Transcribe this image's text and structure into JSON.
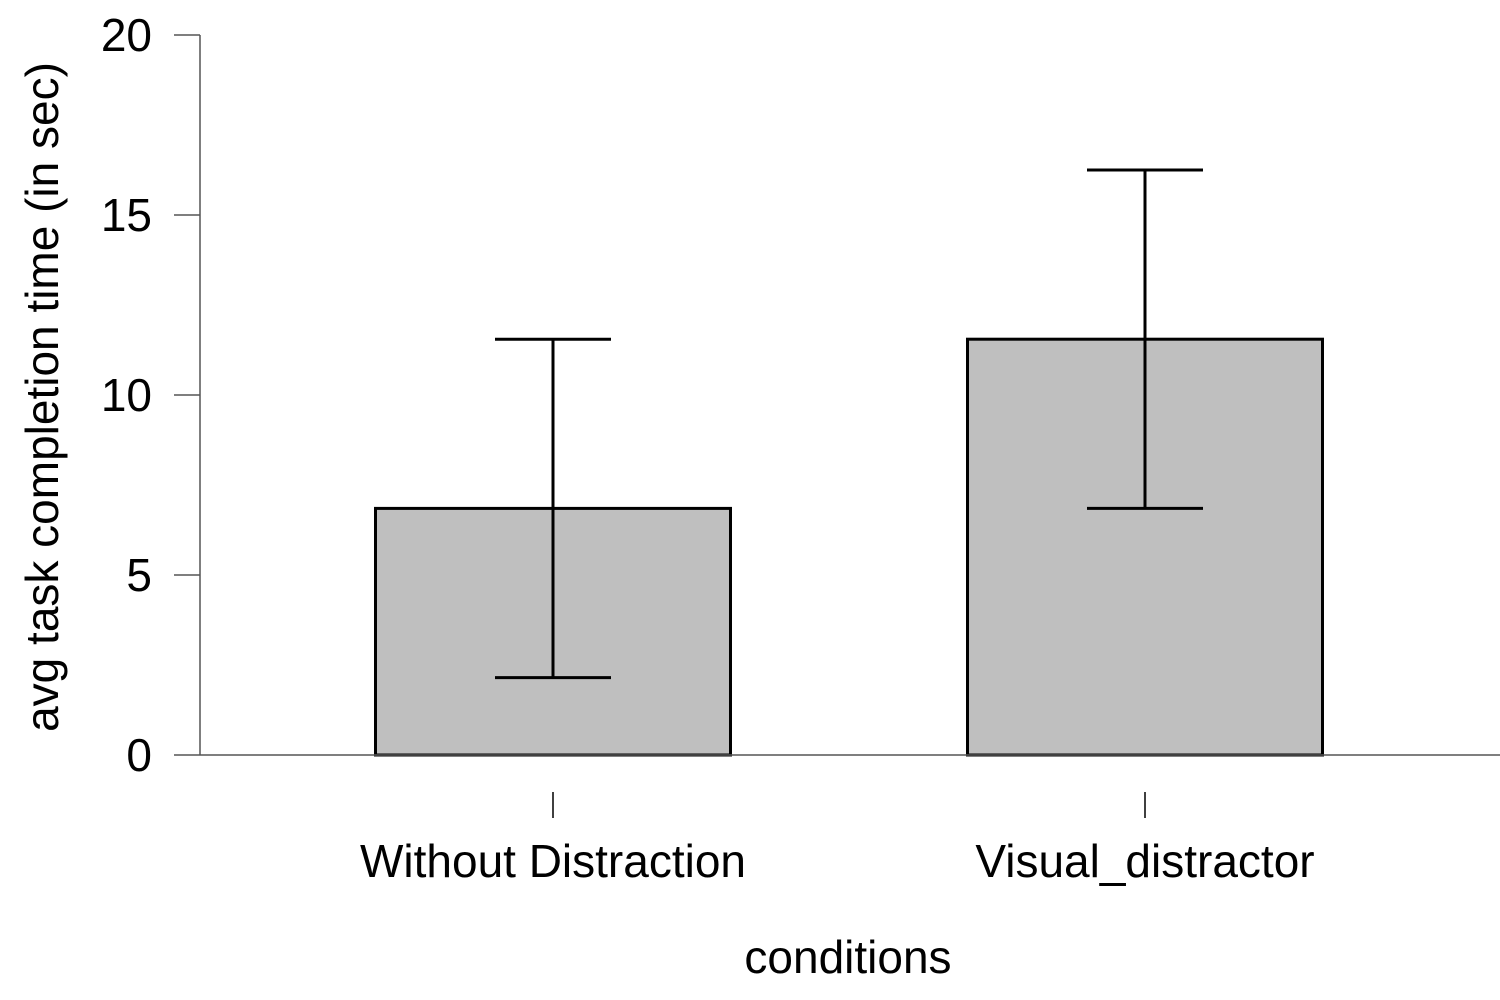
{
  "chart_data": {
    "type": "bar",
    "categories": [
      "Without Distraction",
      "Visual_distractor"
    ],
    "values": [
      6.85,
      11.55
    ],
    "error_bars": [
      {
        "low": 2.15,
        "high": 11.55
      },
      {
        "low": 6.85,
        "high": 16.25
      }
    ],
    "yticks": [
      "0",
      "5",
      "10",
      "15",
      "20"
    ],
    "xlabel": "conditions",
    "ylabel": "avg task completion time (in sec)",
    "ylim": [
      0,
      20
    ],
    "grid": false,
    "legend": "none",
    "colors": {
      "bar_fill": "#bfbfbf",
      "bar_stroke": "#000000",
      "axis": "#555555"
    }
  }
}
